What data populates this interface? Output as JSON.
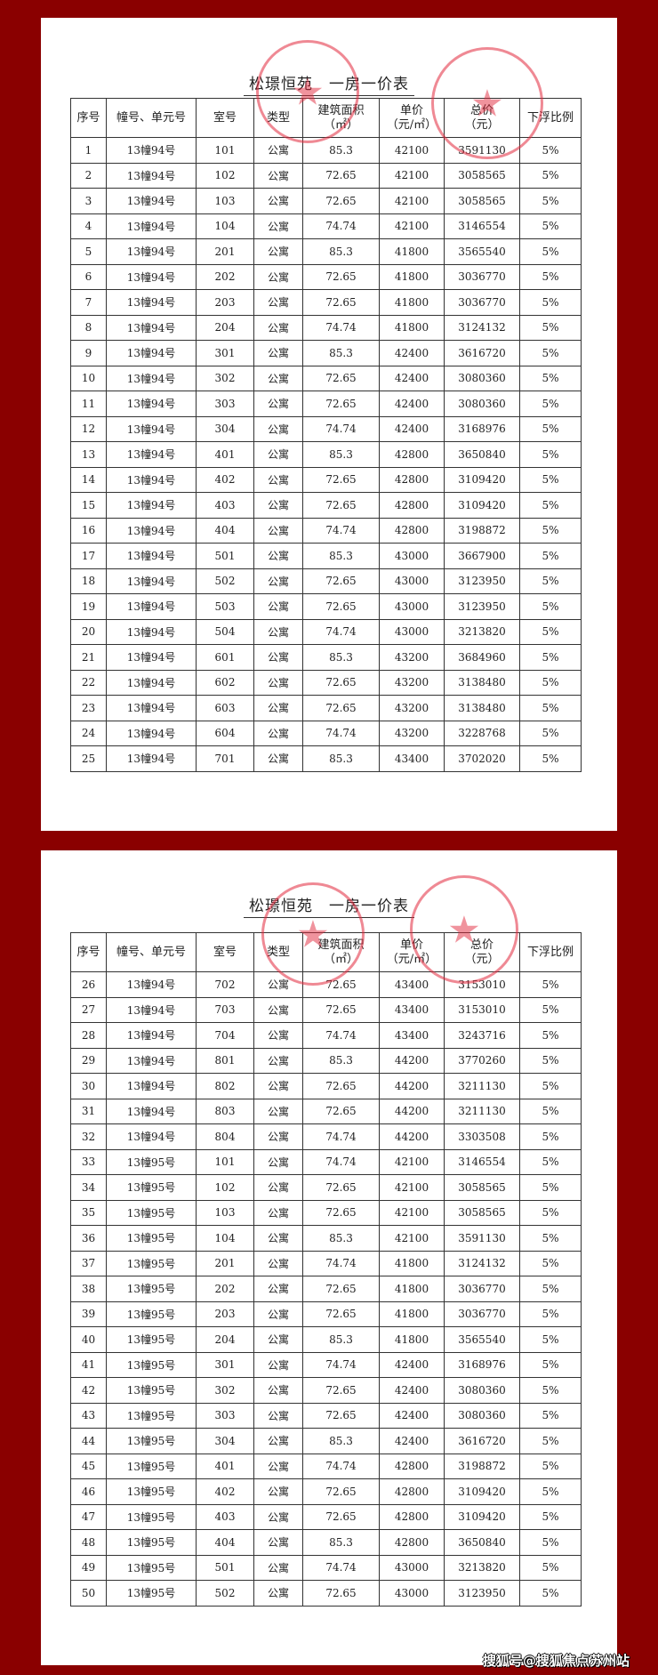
{
  "colors": {
    "background": "#8a0000",
    "stamp": "#e1283c"
  },
  "headers": [
    "序号",
    "幢号、单元号",
    "室号",
    "类型",
    "建筑面积\n（㎡）",
    "单价\n（元/㎡）",
    "总价\n（元）",
    "下浮比例"
  ],
  "pages": [
    {
      "title": "松璟恒苑　一房一价表",
      "rows": [
        [
          "1",
          "13幢94号",
          "101",
          "公寓",
          "85.3",
          "42100",
          "3591130",
          "5%"
        ],
        [
          "2",
          "13幢94号",
          "102",
          "公寓",
          "72.65",
          "42100",
          "3058565",
          "5%"
        ],
        [
          "3",
          "13幢94号",
          "103",
          "公寓",
          "72.65",
          "42100",
          "3058565",
          "5%"
        ],
        [
          "4",
          "13幢94号",
          "104",
          "公寓",
          "74.74",
          "42100",
          "3146554",
          "5%"
        ],
        [
          "5",
          "13幢94号",
          "201",
          "公寓",
          "85.3",
          "41800",
          "3565540",
          "5%"
        ],
        [
          "6",
          "13幢94号",
          "202",
          "公寓",
          "72.65",
          "41800",
          "3036770",
          "5%"
        ],
        [
          "7",
          "13幢94号",
          "203",
          "公寓",
          "72.65",
          "41800",
          "3036770",
          "5%"
        ],
        [
          "8",
          "13幢94号",
          "204",
          "公寓",
          "74.74",
          "41800",
          "3124132",
          "5%"
        ],
        [
          "9",
          "13幢94号",
          "301",
          "公寓",
          "85.3",
          "42400",
          "3616720",
          "5%"
        ],
        [
          "10",
          "13幢94号",
          "302",
          "公寓",
          "72.65",
          "42400",
          "3080360",
          "5%"
        ],
        [
          "11",
          "13幢94号",
          "303",
          "公寓",
          "72.65",
          "42400",
          "3080360",
          "5%"
        ],
        [
          "12",
          "13幢94号",
          "304",
          "公寓",
          "74.74",
          "42400",
          "3168976",
          "5%"
        ],
        [
          "13",
          "13幢94号",
          "401",
          "公寓",
          "85.3",
          "42800",
          "3650840",
          "5%"
        ],
        [
          "14",
          "13幢94号",
          "402",
          "公寓",
          "72.65",
          "42800",
          "3109420",
          "5%"
        ],
        [
          "15",
          "13幢94号",
          "403",
          "公寓",
          "72.65",
          "42800",
          "3109420",
          "5%"
        ],
        [
          "16",
          "13幢94号",
          "404",
          "公寓",
          "74.74",
          "42800",
          "3198872",
          "5%"
        ],
        [
          "17",
          "13幢94号",
          "501",
          "公寓",
          "85.3",
          "43000",
          "3667900",
          "5%"
        ],
        [
          "18",
          "13幢94号",
          "502",
          "公寓",
          "72.65",
          "43000",
          "3123950",
          "5%"
        ],
        [
          "19",
          "13幢94号",
          "503",
          "公寓",
          "72.65",
          "43000",
          "3123950",
          "5%"
        ],
        [
          "20",
          "13幢94号",
          "504",
          "公寓",
          "74.74",
          "43000",
          "3213820",
          "5%"
        ],
        [
          "21",
          "13幢94号",
          "601",
          "公寓",
          "85.3",
          "43200",
          "3684960",
          "5%"
        ],
        [
          "22",
          "13幢94号",
          "602",
          "公寓",
          "72.65",
          "43200",
          "3138480",
          "5%"
        ],
        [
          "23",
          "13幢94号",
          "603",
          "公寓",
          "72.65",
          "43200",
          "3138480",
          "5%"
        ],
        [
          "24",
          "13幢94号",
          "604",
          "公寓",
          "74.74",
          "43200",
          "3228768",
          "5%"
        ],
        [
          "25",
          "13幢94号",
          "701",
          "公寓",
          "85.3",
          "43400",
          "3702020",
          "5%"
        ]
      ]
    },
    {
      "title": "松璟恒苑　一房一价表",
      "rows": [
        [
          "26",
          "13幢94号",
          "702",
          "公寓",
          "72.65",
          "43400",
          "3153010",
          "5%"
        ],
        [
          "27",
          "13幢94号",
          "703",
          "公寓",
          "72.65",
          "43400",
          "3153010",
          "5%"
        ],
        [
          "28",
          "13幢94号",
          "704",
          "公寓",
          "74.74",
          "43400",
          "3243716",
          "5%"
        ],
        [
          "29",
          "13幢94号",
          "801",
          "公寓",
          "85.3",
          "44200",
          "3770260",
          "5%"
        ],
        [
          "30",
          "13幢94号",
          "802",
          "公寓",
          "72.65",
          "44200",
          "3211130",
          "5%"
        ],
        [
          "31",
          "13幢94号",
          "803",
          "公寓",
          "72.65",
          "44200",
          "3211130",
          "5%"
        ],
        [
          "32",
          "13幢94号",
          "804",
          "公寓",
          "74.74",
          "44200",
          "3303508",
          "5%"
        ],
        [
          "33",
          "13幢95号",
          "101",
          "公寓",
          "74.74",
          "42100",
          "3146554",
          "5%"
        ],
        [
          "34",
          "13幢95号",
          "102",
          "公寓",
          "72.65",
          "42100",
          "3058565",
          "5%"
        ],
        [
          "35",
          "13幢95号",
          "103",
          "公寓",
          "72.65",
          "42100",
          "3058565",
          "5%"
        ],
        [
          "36",
          "13幢95号",
          "104",
          "公寓",
          "85.3",
          "42100",
          "3591130",
          "5%"
        ],
        [
          "37",
          "13幢95号",
          "201",
          "公寓",
          "74.74",
          "41800",
          "3124132",
          "5%"
        ],
        [
          "38",
          "13幢95号",
          "202",
          "公寓",
          "72.65",
          "41800",
          "3036770",
          "5%"
        ],
        [
          "39",
          "13幢95号",
          "203",
          "公寓",
          "72.65",
          "41800",
          "3036770",
          "5%"
        ],
        [
          "40",
          "13幢95号",
          "204",
          "公寓",
          "85.3",
          "41800",
          "3565540",
          "5%"
        ],
        [
          "41",
          "13幢95号",
          "301",
          "公寓",
          "74.74",
          "42400",
          "3168976",
          "5%"
        ],
        [
          "42",
          "13幢95号",
          "302",
          "公寓",
          "72.65",
          "42400",
          "3080360",
          "5%"
        ],
        [
          "43",
          "13幢95号",
          "303",
          "公寓",
          "72.65",
          "42400",
          "3080360",
          "5%"
        ],
        [
          "44",
          "13幢95号",
          "304",
          "公寓",
          "85.3",
          "42400",
          "3616720",
          "5%"
        ],
        [
          "45",
          "13幢95号",
          "401",
          "公寓",
          "74.74",
          "42800",
          "3198872",
          "5%"
        ],
        [
          "46",
          "13幢95号",
          "402",
          "公寓",
          "72.65",
          "42800",
          "3109420",
          "5%"
        ],
        [
          "47",
          "13幢95号",
          "403",
          "公寓",
          "72.65",
          "42800",
          "3109420",
          "5%"
        ],
        [
          "48",
          "13幢95号",
          "404",
          "公寓",
          "85.3",
          "42800",
          "3650840",
          "5%"
        ],
        [
          "49",
          "13幢95号",
          "501",
          "公寓",
          "74.74",
          "43000",
          "3213820",
          "5%"
        ],
        [
          "50",
          "13幢95号",
          "502",
          "公寓",
          "72.65",
          "43000",
          "3123950",
          "5%"
        ]
      ]
    }
  ],
  "stamps": [
    "company-seal",
    "housing-bureau-seal"
  ],
  "watermark": "搜狐号@搜狐焦点苏州站"
}
